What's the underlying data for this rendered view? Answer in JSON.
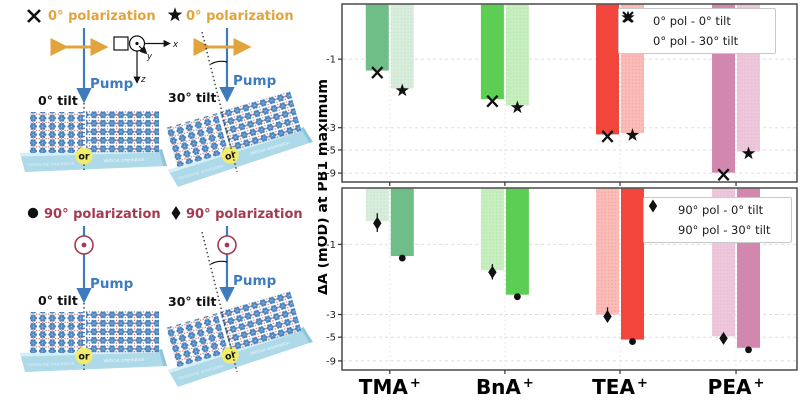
{
  "left": {
    "axes": {
      "x": "x",
      "y": "y",
      "z": "z"
    },
    "colors": {
      "pol0_text": "#E2A33D",
      "pol90_text": "#A43A52",
      "pump": "#3E7CBE",
      "molecule": "#4580BC",
      "substrate": "#ADD9E8",
      "or_badge": "#F2EC6B"
    },
    "setups": [
      {
        "marker": "x",
        "pol": "0° polarization",
        "tilt": "0° tilt",
        "pump": "Pump",
        "or": "or",
        "sub_left": "Horizontal orientation",
        "sub_right": "Vertical orientation"
      },
      {
        "marker": "star",
        "pol": "0° polarization",
        "tilt": "30° tilt",
        "pump": "Pump",
        "or": "or",
        "sub_left": "Horizontal orientation",
        "sub_right": "Vertical orientation"
      },
      {
        "marker": "circle",
        "pol": "90° polarization",
        "tilt": "0° tilt",
        "pump": "Pump",
        "or": "or",
        "sub_left": "Horizontal orientation",
        "sub_right": "Vertical orientation"
      },
      {
        "marker": "diamond",
        "pol": "90° polarization",
        "tilt": "30° tilt",
        "pump": "Pump",
        "or": "or",
        "sub_left": "Horizontal orientation",
        "sub_right": "Vertical orientation"
      }
    ]
  },
  "chart_data": {
    "type": "bar",
    "ylabel": "ΔA (mOD) at PB1 maximum",
    "yscale": "log (negative values)",
    "yticks": [
      -1,
      -3,
      -5,
      -9
    ],
    "grid": true,
    "legend_position": "upper right",
    "categories": [
      {
        "name": "TMA",
        "charge": "+"
      },
      {
        "name": "BnA",
        "charge": "+"
      },
      {
        "name": "TEA",
        "charge": "+"
      },
      {
        "name": "PEA",
        "charge": "+"
      }
    ],
    "bar_colors_dark": [
      "#6FBE88",
      "#5CCE53",
      "#F2453B",
      "#D287AE"
    ],
    "bar_colors_light": [
      "#D8EDDC",
      "#C8EEC0",
      "#F9BCB8",
      "#EDC7DB"
    ],
    "panels": [
      {
        "name": "0° polarization",
        "legend": [
          {
            "marker": "x",
            "label": "0° pol - 0° tilt"
          },
          {
            "marker": "star",
            "label": "0° pol - 30° tilt"
          }
        ],
        "series": [
          {
            "name": "0° pol - 0° tilt",
            "marker": "x",
            "shade": "dark",
            "side": "left",
            "values": [
              -1.2,
              -1.9,
              -3.5,
              -8.9
            ]
          },
          {
            "name": "0° pol - 30° tilt",
            "marker": "star",
            "shade": "light",
            "side": "right",
            "values": [
              -1.6,
              -2.1,
              -3.4,
              -5.2
            ]
          }
        ]
      },
      {
        "name": "90° polarization",
        "legend": [
          {
            "marker": "circle",
            "label": "90° pol - 0° tilt"
          },
          {
            "marker": "diamond",
            "label": "90° pol - 30° tilt"
          }
        ],
        "series": [
          {
            "name": "90° pol - 30° tilt",
            "marker": "diamond",
            "shade": "light",
            "side": "left",
            "values": [
              -0.7,
              -1.5,
              -3.0,
              -4.9
            ],
            "errors": [
              0.1,
              0.18,
              0.4,
              0.5
            ]
          },
          {
            "name": "90° pol - 0° tilt",
            "marker": "circle",
            "shade": "dark",
            "side": "right",
            "values": [
              -1.2,
              -2.2,
              -5.3,
              -6.5
            ]
          }
        ]
      }
    ]
  }
}
